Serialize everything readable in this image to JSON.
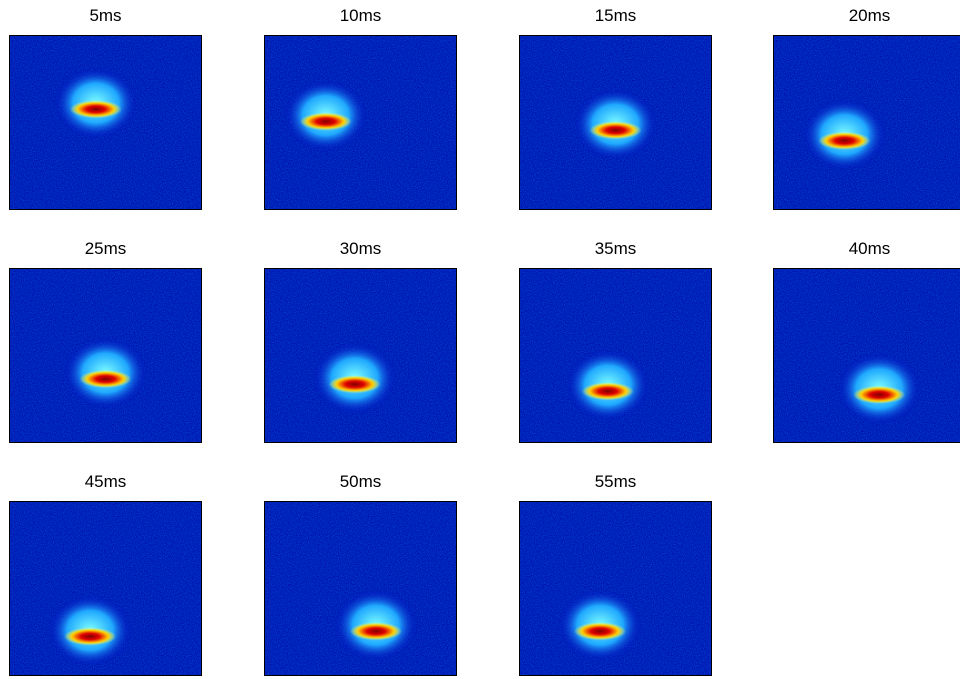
{
  "panels": [
    {
      "title": "5ms"
    },
    {
      "title": "10ms"
    },
    {
      "title": "15ms"
    },
    {
      "title": "20ms"
    },
    {
      "title": "25ms"
    },
    {
      "title": "30ms"
    },
    {
      "title": "35ms"
    },
    {
      "title": "40ms"
    },
    {
      "title": "45ms"
    },
    {
      "title": "50ms"
    },
    {
      "title": "55ms"
    }
  ]
}
